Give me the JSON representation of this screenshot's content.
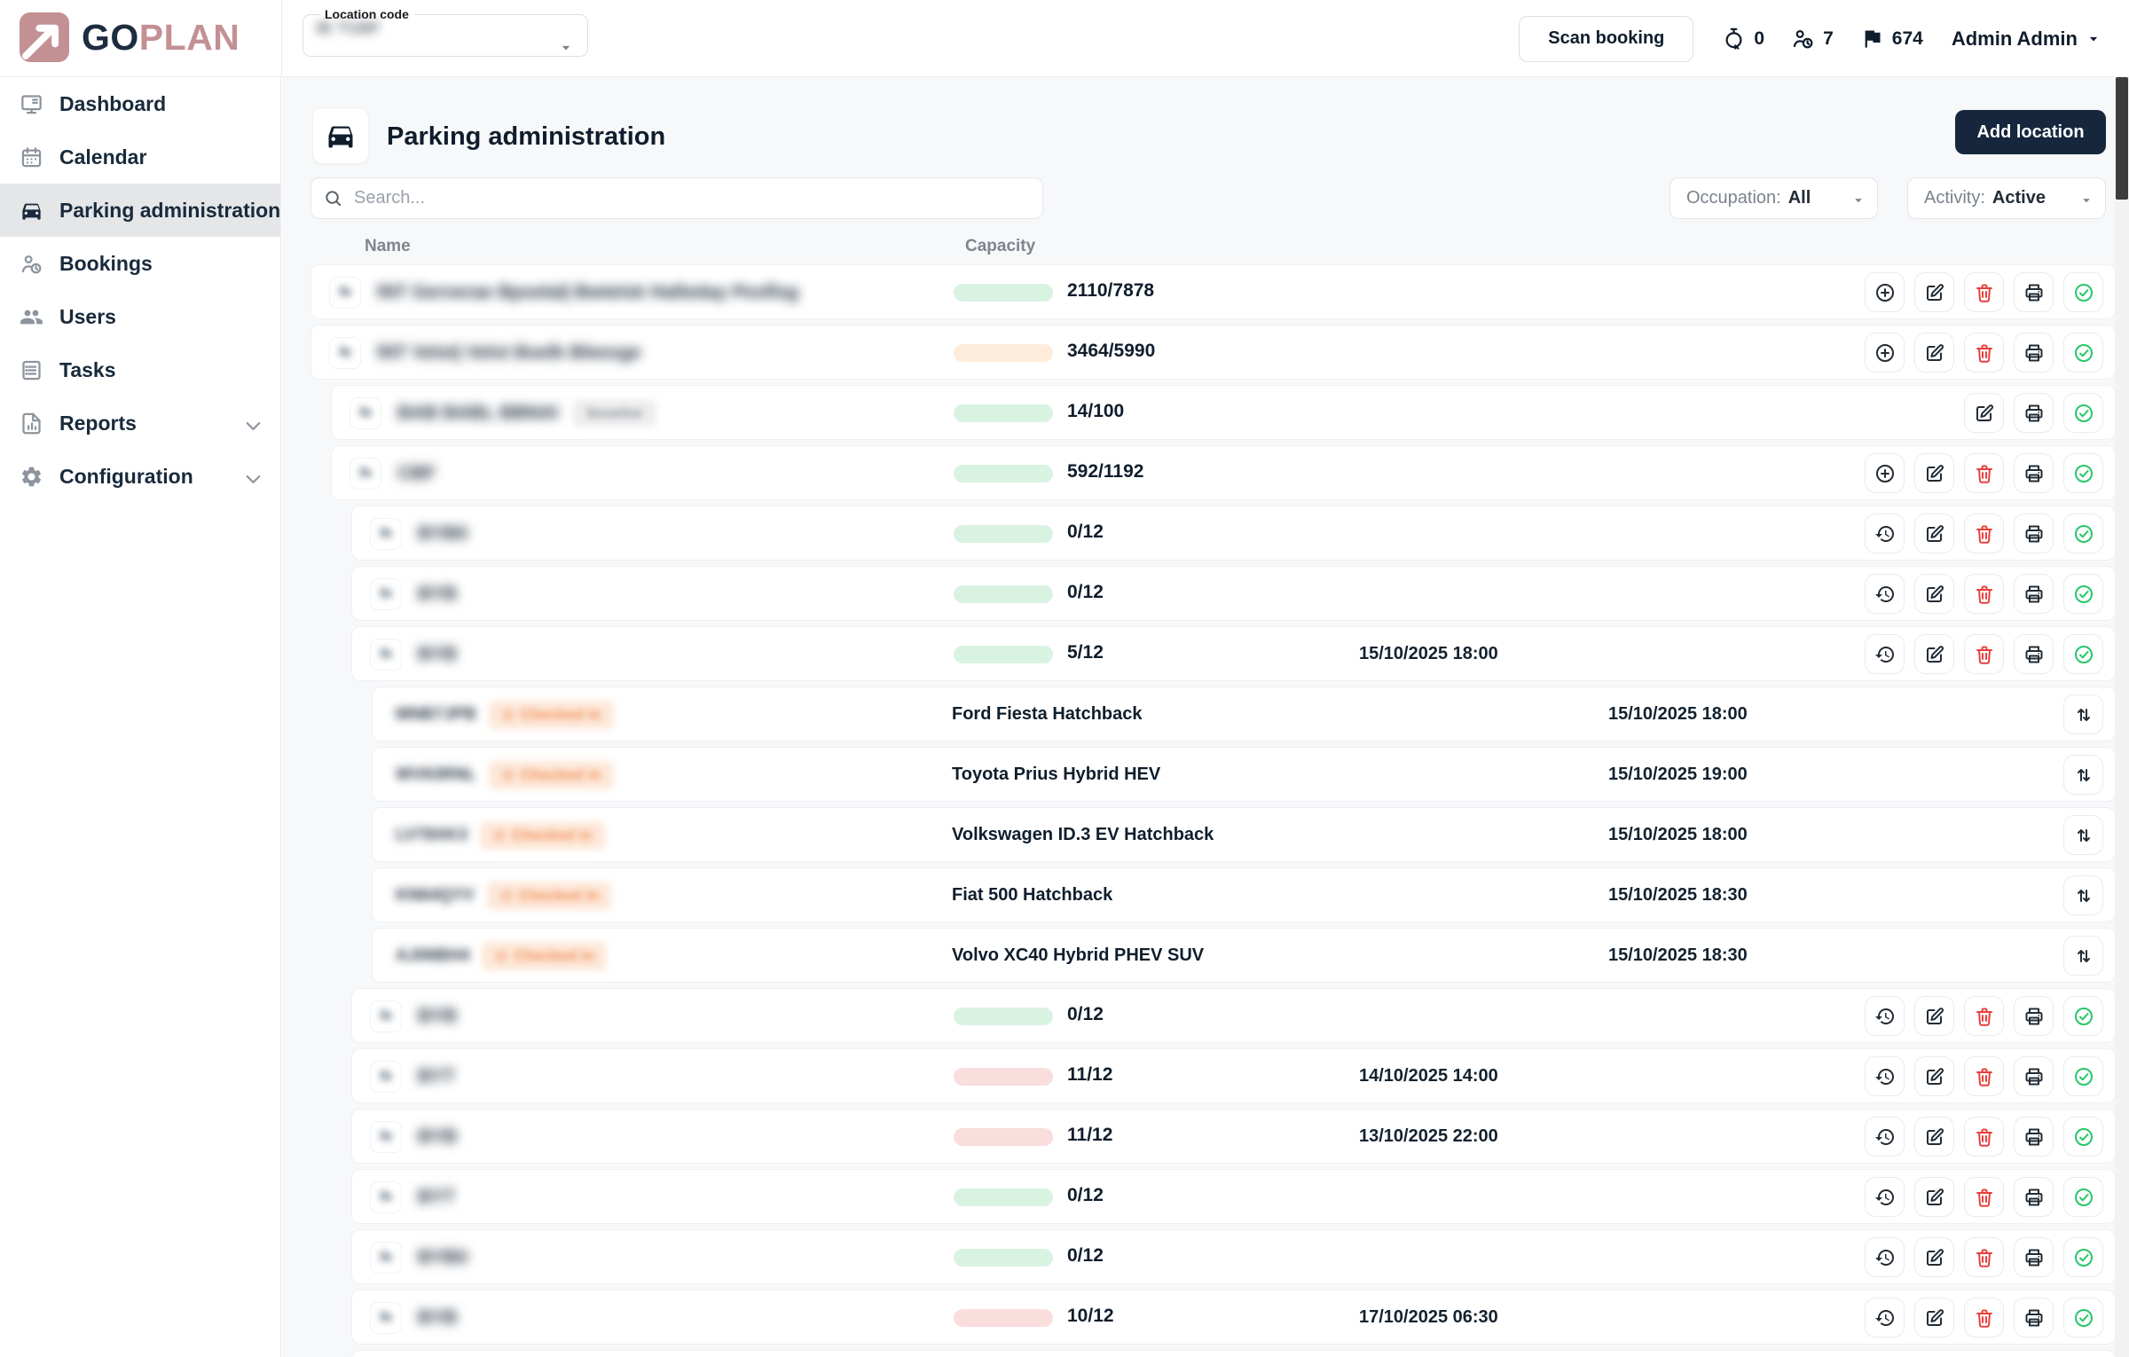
{
  "brand": {
    "go": "GO",
    "plan": "PLAN"
  },
  "topbar": {
    "location_label": "Location code",
    "location_value": "IB TGBF",
    "location_redacted": true,
    "scan_label": "Scan booking",
    "counters": [
      {
        "icon": "timer-x-icon",
        "value": "0"
      },
      {
        "icon": "person-clock-icon",
        "value": "7"
      },
      {
        "icon": "flag-icon",
        "value": "674"
      }
    ],
    "user": "Admin Admin"
  },
  "sidebar": {
    "items": [
      {
        "label": "Dashboard",
        "icon": "dashboard-icon",
        "active": false,
        "expandable": false
      },
      {
        "label": "Calendar",
        "icon": "calendar-icon",
        "active": false,
        "expandable": false
      },
      {
        "label": "Parking administration",
        "icon": "car-icon",
        "active": true,
        "expandable": false
      },
      {
        "label": "Bookings",
        "icon": "person-clock-icon",
        "active": false,
        "expandable": false
      },
      {
        "label": "Users",
        "icon": "users-icon",
        "active": false,
        "expandable": false
      },
      {
        "label": "Tasks",
        "icon": "tasks-icon",
        "active": false,
        "expandable": false
      },
      {
        "label": "Reports",
        "icon": "reports-icon",
        "active": false,
        "expandable": true
      },
      {
        "label": "Configuration",
        "icon": "gear-icon",
        "active": false,
        "expandable": true
      }
    ]
  },
  "page": {
    "title": "Parking administration",
    "add_label": "Add location",
    "search_placeholder": "Search...",
    "filter_occupation_label": "Occupation:",
    "filter_occupation_value": "All",
    "filter_activity_label": "Activity:",
    "filter_activity_value": "Active",
    "columns": {
      "name": "Name",
      "capacity": "Capacity"
    }
  },
  "theme": {
    "brand_rose": "#c39094",
    "brand_navy": "#16263c",
    "bar_green": "#2bc96c",
    "bar_green_track": "#d9f3e3",
    "bar_orange": "#f68a2e",
    "bar_orange_track": "#fdecd9",
    "bar_red": "#ee3b35",
    "bar_red_track": "#fadddd",
    "badge_orange_bg": "#fde8d9",
    "badge_orange_text": "#f08d54"
  },
  "rows": [
    {
      "kind": "location",
      "level": 0,
      "name": "lNT Gerverae Bpselal| Bwtelsk Halleday Pesflsg",
      "name_redacted": true,
      "badge": null,
      "capacity": {
        "used": 2110,
        "total": 7878,
        "label": "2110/7878",
        "color": "green"
      },
      "date": "",
      "actions": [
        "add",
        "edit",
        "delete",
        "print",
        "approve"
      ]
    },
    {
      "kind": "location",
      "level": 0,
      "name": "lNT Velst| Velst Bselk Bleesge",
      "name_redacted": true,
      "badge": null,
      "capacity": {
        "used": 3464,
        "total": 5990,
        "label": "3464/5990",
        "color": "orange"
      },
      "date": "",
      "actions": [
        "add",
        "edit",
        "delete",
        "print",
        "approve"
      ]
    },
    {
      "kind": "location",
      "level": 1,
      "name": "BAB BABL BBNAl",
      "name_redacted": true,
      "badge": {
        "text": "bsvelsv",
        "redacted": true
      },
      "capacity": {
        "used": 14,
        "total": 100,
        "label": "14/100",
        "color": "green"
      },
      "date": "",
      "actions": [
        "edit",
        "print",
        "approve"
      ]
    },
    {
      "kind": "location",
      "level": 1,
      "name": "CBF",
      "name_redacted": true,
      "badge": null,
      "capacity": {
        "used": 592,
        "total": 1192,
        "label": "592/1192",
        "color": "green"
      },
      "date": "",
      "actions": [
        "add",
        "edit",
        "delete",
        "print",
        "approve"
      ]
    },
    {
      "kind": "location",
      "level": 2,
      "name": "BYB0",
      "name_redacted": true,
      "badge": null,
      "capacity": {
        "used": 0,
        "total": 12,
        "label": "0/12",
        "color": "empty"
      },
      "date": "",
      "actions": [
        "history",
        "edit",
        "delete",
        "print",
        "approve"
      ]
    },
    {
      "kind": "location",
      "level": 2,
      "name": "BYB",
      "name_redacted": true,
      "badge": null,
      "capacity": {
        "used": 0,
        "total": 12,
        "label": "0/12",
        "color": "empty"
      },
      "date": "",
      "actions": [
        "history",
        "edit",
        "delete",
        "print",
        "approve"
      ]
    },
    {
      "kind": "location",
      "level": 2,
      "name": "BYB",
      "name_redacted": true,
      "badge": null,
      "capacity": {
        "used": 5,
        "total": 12,
        "label": "5/12",
        "color": "green"
      },
      "date": "15/10/2025 18:00",
      "actions": [
        "history",
        "edit",
        "delete",
        "print",
        "approve"
      ]
    },
    {
      "kind": "vehicle",
      "level": 3,
      "plate": "MNB7JPB",
      "plate_redacted": true,
      "status": "Checked in",
      "status_redacted": true,
      "model": "Ford Fiesta Hatchback",
      "date": "15/10/2025 18:00",
      "actions": [
        "swap"
      ]
    },
    {
      "kind": "vehicle",
      "level": 3,
      "plate": "WV63RNL",
      "plate_redacted": true,
      "status": "Checked in",
      "status_redacted": true,
      "model": "Toyota Prius Hybrid HEV",
      "date": "15/10/2025 19:00",
      "actions": [
        "swap"
      ]
    },
    {
      "kind": "vehicle",
      "level": 3,
      "plate": "LV78XK3",
      "plate_redacted": true,
      "status": "Checked in",
      "status_redacted": true,
      "model": "Volkswagen ID.3 EV Hatchback",
      "date": "15/10/2025 18:00",
      "actions": [
        "swap"
      ]
    },
    {
      "kind": "vehicle",
      "level": 3,
      "plate": "KN64QYV",
      "plate_redacted": true,
      "status": "Checked in",
      "status_redacted": true,
      "model": "Fiat 500 Hatchback",
      "date": "15/10/2025 18:30",
      "actions": [
        "swap"
      ]
    },
    {
      "kind": "vehicle",
      "level": 3,
      "plate": "AJ06BH4",
      "plate_redacted": true,
      "status": "Checked in",
      "status_redacted": true,
      "model": "Volvo XC40 Hybrid PHEV SUV",
      "date": "15/10/2025 18:30",
      "actions": [
        "swap"
      ]
    },
    {
      "kind": "location",
      "level": 2,
      "name": "BYB",
      "name_redacted": true,
      "badge": null,
      "capacity": {
        "used": 0,
        "total": 12,
        "label": "0/12",
        "color": "empty"
      },
      "date": "",
      "actions": [
        "history",
        "edit",
        "delete",
        "print",
        "approve"
      ]
    },
    {
      "kind": "location",
      "level": 2,
      "name": "BYT",
      "name_redacted": true,
      "badge": null,
      "capacity": {
        "used": 11,
        "total": 12,
        "label": "11/12",
        "color": "red"
      },
      "date": "14/10/2025 14:00",
      "actions": [
        "history",
        "edit",
        "delete",
        "print",
        "approve"
      ]
    },
    {
      "kind": "location",
      "level": 2,
      "name": "BYB",
      "name_redacted": true,
      "badge": null,
      "capacity": {
        "used": 11,
        "total": 12,
        "label": "11/12",
        "color": "red"
      },
      "date": "13/10/2025 22:00",
      "actions": [
        "history",
        "edit",
        "delete",
        "print",
        "approve"
      ]
    },
    {
      "kind": "location",
      "level": 2,
      "name": "BYT",
      "name_redacted": true,
      "badge": null,
      "capacity": {
        "used": 0,
        "total": 12,
        "label": "0/12",
        "color": "empty"
      },
      "date": "",
      "actions": [
        "history",
        "edit",
        "delete",
        "print",
        "approve"
      ]
    },
    {
      "kind": "location",
      "level": 2,
      "name": "BYB0",
      "name_redacted": true,
      "badge": null,
      "capacity": {
        "used": 0,
        "total": 12,
        "label": "0/12",
        "color": "empty"
      },
      "date": "",
      "actions": [
        "history",
        "edit",
        "delete",
        "print",
        "approve"
      ]
    },
    {
      "kind": "location",
      "level": 2,
      "name": "BYB",
      "name_redacted": true,
      "badge": null,
      "capacity": {
        "used": 10,
        "total": 12,
        "label": "10/12",
        "color": "red"
      },
      "date": "17/10/2025 06:30",
      "actions": [
        "history",
        "edit",
        "delete",
        "print",
        "approve"
      ]
    },
    {
      "kind": "sliver",
      "level": 2
    }
  ]
}
